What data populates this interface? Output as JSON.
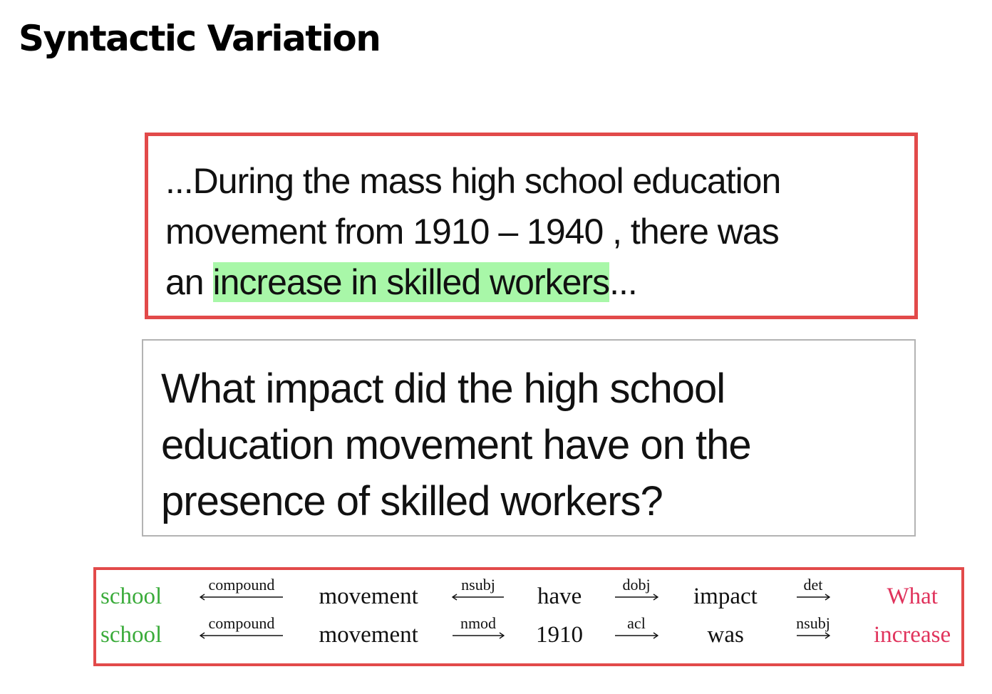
{
  "title": "Syntactic Variation",
  "passage": {
    "line1": "...During the mass high school education",
    "line2": "movement from 1910 – 1940 , there was",
    "line3_pre": "an ",
    "line3_highlight": "increase in skilled workers",
    "line3_post": "..."
  },
  "question": {
    "line1": "What impact did the high school",
    "line2": "education movement have on the",
    "line3": "presence of skilled workers?"
  },
  "dependency_paths": [
    {
      "words": [
        "school",
        "movement",
        "have",
        "impact",
        "What"
      ],
      "relations": [
        {
          "label": "compound",
          "direction": "left"
        },
        {
          "label": "nsubj",
          "direction": "left"
        },
        {
          "label": "dobj",
          "direction": "right"
        },
        {
          "label": "det",
          "direction": "right"
        }
      ]
    },
    {
      "words": [
        "school",
        "movement",
        "1910",
        "was",
        "increase"
      ],
      "relations": [
        {
          "label": "compound",
          "direction": "left"
        },
        {
          "label": "nmod",
          "direction": "right"
        },
        {
          "label": "acl",
          "direction": "right"
        },
        {
          "label": "nsubj",
          "direction": "right"
        }
      ]
    }
  ],
  "colors": {
    "box_border": "#e24a4a",
    "highlight": "#a8f7a8",
    "question_border": "#b3b3b3",
    "anchor_word": "#3aab3a",
    "answer_word": "#e0335c"
  }
}
